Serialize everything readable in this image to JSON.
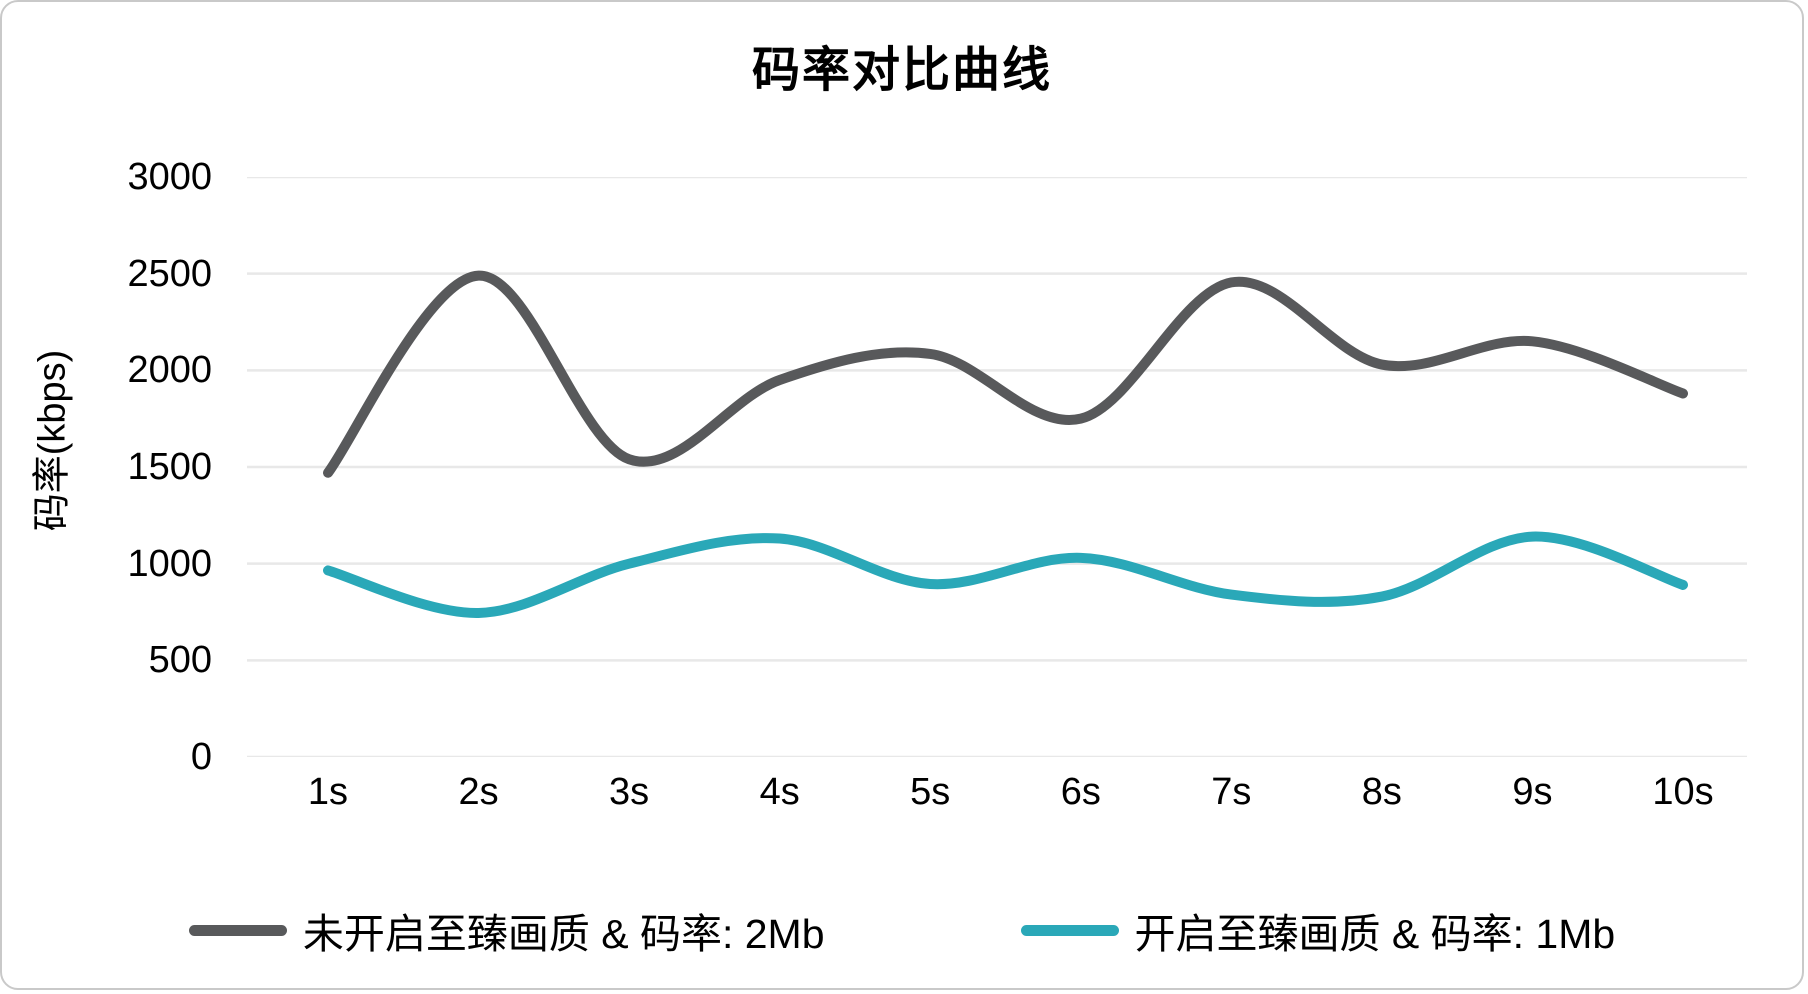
{
  "chart_data": {
    "type": "line",
    "title": "码率对比曲线",
    "xlabel": "",
    "ylabel": "码率(kbps)",
    "categories": [
      "1s",
      "2s",
      "3s",
      "4s",
      "5s",
      "6s",
      "7s",
      "8s",
      "9s",
      "10s"
    ],
    "yticks": [
      0,
      500,
      1000,
      1500,
      2000,
      2500,
      3000
    ],
    "ylim": [
      0,
      3000
    ],
    "grid": true,
    "line_style": "smooth",
    "legend_position": "bottom",
    "series": [
      {
        "name": "未开启至臻画质 & 码率: 2Mb",
        "color": "#58595B",
        "values": [
          1470,
          2490,
          1540,
          1950,
          2085,
          1750,
          2455,
          2030,
          2150,
          1880
        ]
      },
      {
        "name": "开启至臻画质 & 码率: 1Mb",
        "color": "#2AA8B8",
        "values": [
          965,
          745,
          1000,
          1130,
          895,
          1030,
          840,
          830,
          1140,
          890
        ]
      }
    ],
    "colors": {
      "background": "#FFFFFF",
      "gridline": "#E8E8E8",
      "text": "#000000",
      "border": "#C9C9C9"
    }
  }
}
